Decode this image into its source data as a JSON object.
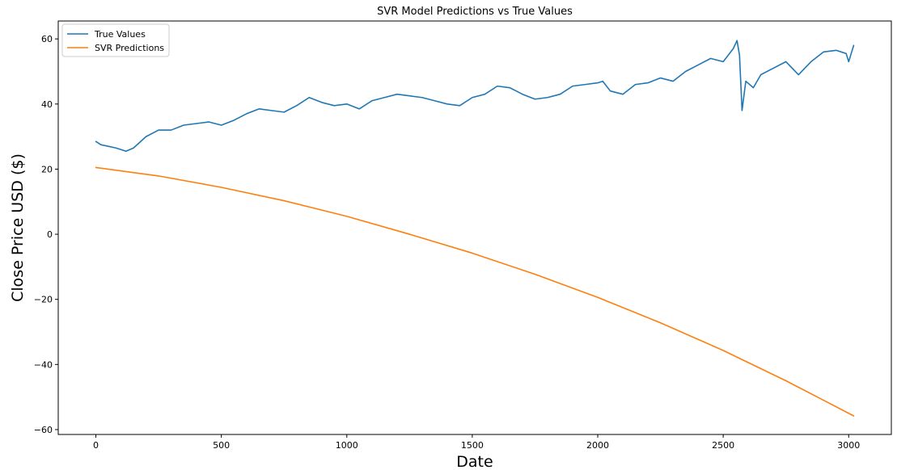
{
  "chart_data": {
    "type": "line",
    "title": "SVR Model Predictions vs True Values",
    "xlabel": "Date",
    "ylabel": "Close Price USD ($)",
    "xlim": [
      -150,
      3170
    ],
    "ylim": [
      -61.5,
      65.5
    ],
    "xticks": [
      0,
      500,
      1000,
      1500,
      2000,
      2500,
      3000
    ],
    "yticks": [
      -60,
      -40,
      -20,
      0,
      20,
      40,
      60
    ],
    "xtick_labels": [
      "0",
      "500",
      "1000",
      "1500",
      "2000",
      "2500",
      "3000"
    ],
    "ytick_labels": [
      "−60",
      "−40",
      "−20",
      "0",
      "20",
      "40",
      "60"
    ],
    "grid": false,
    "legend_position": "upper-left",
    "series": [
      {
        "name": "True Values",
        "color": "#1f77b4",
        "x": [
          0,
          20,
          50,
          80,
          120,
          150,
          200,
          250,
          300,
          350,
          400,
          450,
          500,
          550,
          600,
          650,
          700,
          750,
          800,
          850,
          900,
          950,
          1000,
          1050,
          1100,
          1150,
          1200,
          1250,
          1300,
          1350,
          1400,
          1450,
          1500,
          1550,
          1600,
          1650,
          1700,
          1750,
          1800,
          1850,
          1900,
          1950,
          2000,
          2020,
          2050,
          2100,
          2150,
          2200,
          2250,
          2300,
          2350,
          2400,
          2450,
          2500,
          2540,
          2555,
          2565,
          2575,
          2590,
          2620,
          2650,
          2700,
          2750,
          2800,
          2850,
          2900,
          2950,
          2990,
          3000,
          3010,
          3020
        ],
        "y": [
          28.5,
          27.5,
          27,
          26.5,
          25.5,
          26.5,
          30,
          32,
          32,
          33.5,
          34,
          34.5,
          33.5,
          35,
          37,
          38.5,
          38,
          37.5,
          39.5,
          42,
          40.5,
          39.5,
          40,
          38.5,
          41,
          42,
          43,
          42.5,
          42,
          41,
          40,
          39.5,
          42,
          43,
          45.5,
          45,
          43,
          41.5,
          42,
          43,
          45.5,
          46,
          46.5,
          47,
          44,
          43,
          46,
          46.5,
          48,
          47,
          50,
          52,
          54,
          53,
          57,
          59.5,
          55,
          38,
          47,
          45,
          49,
          51,
          53,
          49,
          53,
          56,
          56.5,
          55.5,
          53,
          55.5,
          58
        ]
      },
      {
        "name": "SVR Predictions",
        "color": "#ff7f0e",
        "x": [
          0,
          250,
          500,
          750,
          1000,
          1250,
          1500,
          1750,
          2000,
          2250,
          2500,
          2750,
          3020
        ],
        "y": [
          20.5,
          17.9,
          14.4,
          10.3,
          5.5,
          0.0,
          -5.8,
          -12.3,
          -19.4,
          -27.2,
          -35.7,
          -45.0,
          -55.8
        ]
      }
    ]
  }
}
